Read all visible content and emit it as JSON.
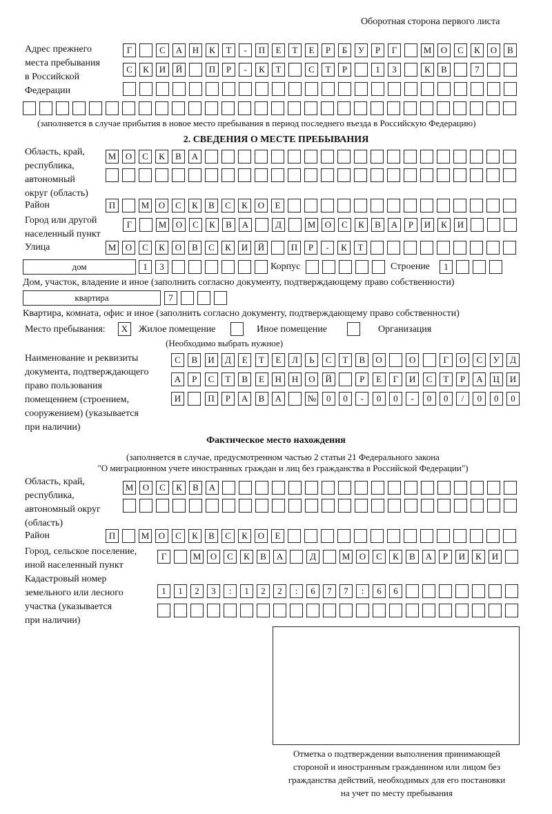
{
  "header": "Оборотная сторона первого листа",
  "prev_address": {
    "label": [
      "Адрес прежнего",
      "места пребывания",
      "в Российской",
      "Федерации"
    ],
    "rows": [
      [
        "Г",
        "",
        "С",
        "А",
        "Н",
        "К",
        "Т",
        "-",
        "П",
        "Е",
        "Т",
        "Е",
        "Р",
        "Б",
        "У",
        "Р",
        "Г",
        "",
        "М",
        "О",
        "С",
        "К",
        "О",
        "В"
      ],
      [
        "С",
        "К",
        "И",
        "Й",
        "",
        "П",
        "Р",
        "-",
        "К",
        "Т",
        "",
        "С",
        "Т",
        "Р",
        "",
        "1",
        "3",
        "",
        "К",
        "В",
        "",
        "7",
        "",
        ""
      ],
      [],
      []
    ],
    "note": "(заполняется в случае прибытия в новое место пребывания в период последнего въезда в Российскую Федерацию)"
  },
  "section2": {
    "title": "2. СВЕДЕНИЯ О МЕСТЕ ПРЕБЫВАНИЯ",
    "region_label": [
      "Область, край,",
      "республика,",
      "автономный",
      "округ (область)"
    ],
    "region_rows": [
      [
        "М",
        "О",
        "С",
        "К",
        "В",
        "А"
      ],
      []
    ],
    "district_label": "Район",
    "district": [
      "П",
      "",
      "М",
      "О",
      "С",
      "К",
      "В",
      "С",
      "К",
      "О",
      "Е"
    ],
    "city_label": [
      "Город или другой",
      "населенный пункт"
    ],
    "city": [
      "Г",
      "",
      "М",
      "О",
      "С",
      "К",
      "В",
      "А",
      "",
      "Д",
      "",
      "М",
      "О",
      "С",
      "К",
      "В",
      "А",
      "Р",
      "И",
      "К",
      "И"
    ],
    "street_label": "Улица",
    "street": [
      "М",
      "О",
      "С",
      "К",
      "О",
      "В",
      "С",
      "К",
      "И",
      "Й",
      "",
      "П",
      "Р",
      "-",
      "К",
      "Т"
    ],
    "house_type": "дом",
    "house": [
      "1",
      "3"
    ],
    "korpus_label": "Корпус",
    "korpus": [],
    "building_label": "Строение",
    "building": [
      "1"
    ],
    "house_note": "Дом, участок, владение и иное (заполнить согласно документу, подтверждающему право собственности)",
    "flat_type": "квартира",
    "flat": [
      "7"
    ],
    "flat_note": "Квартира, комната, офис и иное (заполнить согласно документу, подтверждающему право собственности)",
    "stay_label": "Место пребывания:",
    "stay_options": [
      {
        "label": "Жилое помещение",
        "mark": "X"
      },
      {
        "label": "Иное помещение",
        "mark": ""
      },
      {
        "label": "Организация",
        "mark": ""
      }
    ],
    "stay_note": "(Необходимо выбрать нужное)",
    "doc_label": [
      "Наименование и реквизиты",
      "документа, подтверждающего",
      "право пользования",
      "помещением (строением,",
      "сооружением) (указывается",
      "при наличии)"
    ],
    "doc_rows": [
      [
        "С",
        "В",
        "И",
        "Д",
        "Е",
        "Т",
        "Е",
        "Л",
        "Ь",
        "С",
        "Т",
        "В",
        "О",
        "",
        "О",
        "",
        "Г",
        "О",
        "С",
        "У",
        "Д"
      ],
      [
        "А",
        "Р",
        "С",
        "Т",
        "В",
        "Е",
        "Н",
        "Н",
        "О",
        "Й",
        "",
        "Р",
        "Е",
        "Г",
        "И",
        "С",
        "Т",
        "Р",
        "А",
        "Ц",
        "И"
      ],
      [
        "И",
        "",
        "П",
        "Р",
        "А",
        "В",
        "А",
        "",
        "№",
        "0",
        "0",
        "-",
        "0",
        "0",
        "-",
        "0",
        "0",
        "/",
        "0",
        "0",
        "0"
      ]
    ]
  },
  "actual": {
    "title": "Фактическое место нахождения",
    "subtitle": [
      "(заполняется в случае, предусмотренном частью 2 статьи 21 Федерального закона",
      "\"О миграционном учете иностранных граждан и лиц без гражданства в Российской Федерации\")"
    ],
    "region_label": [
      "Область, край,",
      "республика,",
      "автономный округ",
      "(область)"
    ],
    "region_rows": [
      [
        "М",
        "О",
        "С",
        "К",
        "В",
        "А"
      ],
      []
    ],
    "district_label": "Район",
    "district": [
      "П",
      "",
      "М",
      "О",
      "С",
      "К",
      "В",
      "С",
      "К",
      "О",
      "Е"
    ],
    "city_label": [
      "Город, сельское поселение,",
      "иной населенный пункт"
    ],
    "city": [
      "Г",
      "",
      "М",
      "О",
      "С",
      "К",
      "В",
      "А",
      "",
      "Д",
      "",
      "М",
      "О",
      "С",
      "К",
      "В",
      "А",
      "Р",
      "И",
      "К",
      "И"
    ],
    "cadastre_label": [
      "Кадастровый номер",
      "земельного или лесного",
      "участка (указывается",
      "при наличии)"
    ],
    "cadastre_rows": [
      [
        "1",
        "1",
        "2",
        "3",
        ":",
        "1",
        "2",
        "2",
        ":",
        "6",
        "7",
        "7",
        ":",
        "6",
        "6"
      ],
      []
    ]
  },
  "confirmation": [
    "Отметка о подтверждении выполнения принимающей",
    "стороной и иностранным гражданином или лицом без",
    "гражданства действий, необходимых для его постановки",
    "на учет по месту пребывания"
  ]
}
